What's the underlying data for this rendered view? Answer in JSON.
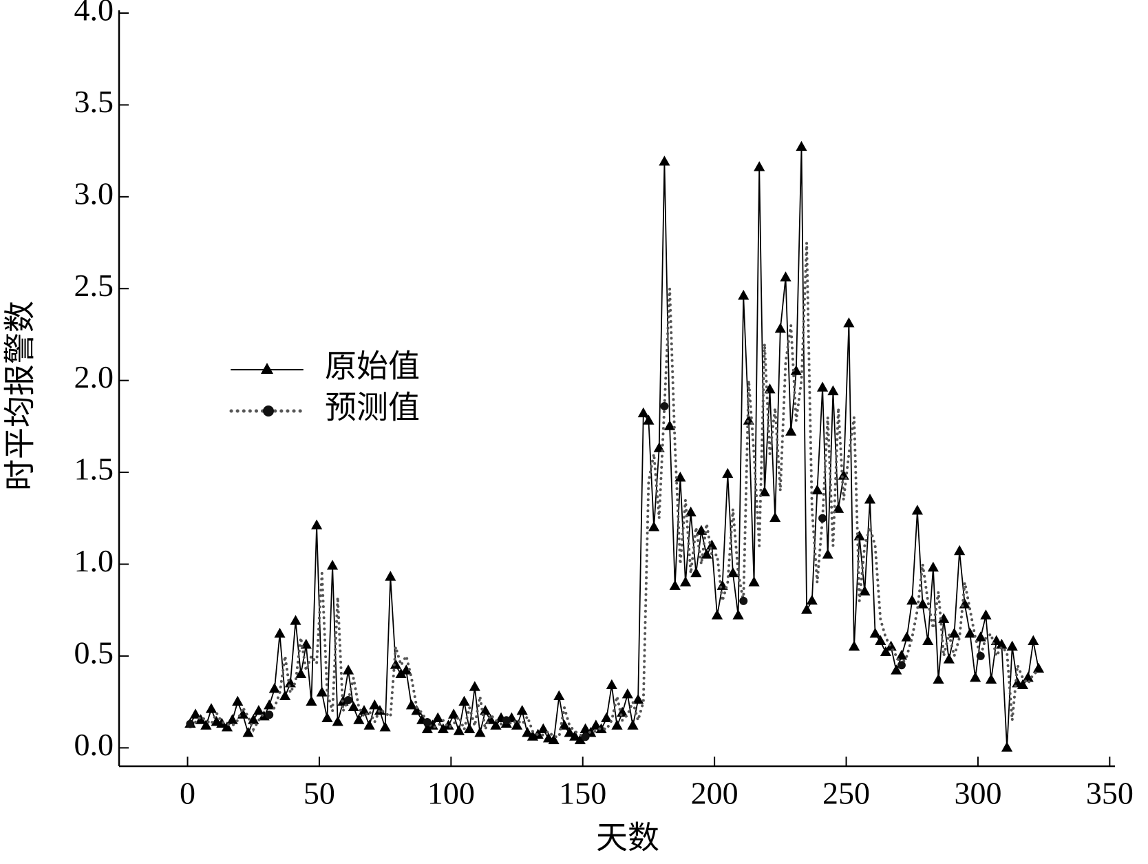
{
  "chart_data": {
    "type": "line",
    "xlabel": "天数",
    "ylabel": "时平均报警数",
    "x": [
      1,
      3,
      5,
      7,
      9,
      11,
      13,
      15,
      17,
      19,
      21,
      23,
      25,
      27,
      29,
      31,
      33,
      35,
      37,
      39,
      41,
      43,
      45,
      47,
      49,
      51,
      53,
      55,
      57,
      59,
      61,
      63,
      65,
      67,
      69,
      71,
      73,
      75,
      77,
      79,
      81,
      83,
      85,
      87,
      89,
      91,
      93,
      95,
      97,
      99,
      101,
      103,
      105,
      107,
      109,
      111,
      113,
      115,
      117,
      119,
      121,
      123,
      125,
      127,
      129,
      131,
      133,
      135,
      137,
      139,
      141,
      143,
      145,
      147,
      149,
      151,
      153,
      155,
      157,
      159,
      161,
      163,
      165,
      167,
      169,
      171,
      173,
      175,
      177,
      179,
      181,
      183,
      185,
      187,
      189,
      191,
      193,
      195,
      197,
      199,
      201,
      203,
      205,
      207,
      209,
      211,
      213,
      215,
      217,
      219,
      221,
      223,
      225,
      227,
      229,
      231,
      233,
      235,
      237,
      239,
      241,
      243,
      245,
      247,
      249,
      251,
      253,
      255,
      257,
      259,
      261,
      263,
      265,
      267,
      269,
      271,
      273,
      275,
      277,
      279,
      281,
      283,
      285,
      287,
      289,
      291,
      293,
      295,
      297,
      299,
      301,
      303,
      305,
      307,
      309,
      311,
      313,
      315,
      317,
      319,
      321,
      323
    ],
    "series": [
      {
        "name": "原始值",
        "color": "#000000",
        "style": "solid",
        "marker": "triangle",
        "values": [
          0.13,
          0.18,
          0.15,
          0.12,
          0.21,
          0.14,
          0.13,
          0.11,
          0.15,
          0.25,
          0.18,
          0.08,
          0.15,
          0.2,
          0.17,
          0.23,
          0.32,
          0.62,
          0.28,
          0.35,
          0.69,
          0.4,
          0.56,
          0.25,
          1.21,
          0.3,
          0.16,
          0.99,
          0.14,
          0.25,
          0.42,
          0.22,
          0.15,
          0.2,
          0.12,
          0.23,
          0.2,
          0.11,
          0.93,
          0.45,
          0.4,
          0.42,
          0.23,
          0.2,
          0.15,
          0.1,
          0.12,
          0.16,
          0.1,
          0.12,
          0.18,
          0.09,
          0.25,
          0.1,
          0.33,
          0.08,
          0.2,
          0.15,
          0.12,
          0.16,
          0.13,
          0.16,
          0.12,
          0.2,
          0.08,
          0.06,
          0.07,
          0.1,
          0.05,
          0.04,
          0.28,
          0.12,
          0.08,
          0.06,
          0.04,
          0.1,
          0.08,
          0.12,
          0.1,
          0.16,
          0.34,
          0.12,
          0.19,
          0.29,
          0.12,
          0.26,
          1.82,
          1.78,
          1.2,
          1.63,
          3.19,
          1.75,
          0.88,
          1.47,
          0.9,
          1.28,
          0.95,
          1.18,
          1.05,
          1.1,
          0.72,
          0.88,
          1.49,
          0.95,
          0.72,
          2.46,
          1.78,
          0.9,
          3.16,
          1.39,
          1.95,
          1.25,
          2.28,
          2.56,
          1.72,
          2.05,
          3.27,
          0.75,
          0.8,
          1.4,
          1.96,
          1.05,
          1.94,
          1.3,
          1.48,
          2.31,
          0.55,
          1.15,
          0.85,
          1.35,
          0.62,
          0.58,
          0.52,
          0.55,
          0.42,
          0.5,
          0.6,
          0.8,
          1.29,
          0.78,
          0.58,
          0.98,
          0.37,
          0.7,
          0.48,
          0.62,
          1.07,
          0.78,
          0.62,
          0.38,
          0.6,
          0.72,
          0.37,
          0.58,
          0.56,
          0.0,
          0.55,
          0.35,
          0.34,
          0.38,
          0.58,
          0.43
        ]
      },
      {
        "name": "预测值",
        "color": "#555555",
        "style": "dotted",
        "marker": "circle",
        "values": [
          0.13,
          0.14,
          0.17,
          0.15,
          0.13,
          0.19,
          0.14,
          0.13,
          0.12,
          0.15,
          0.22,
          0.17,
          0.1,
          0.15,
          0.19,
          0.18,
          0.22,
          0.3,
          0.5,
          0.3,
          0.36,
          0.6,
          0.42,
          0.5,
          0.46,
          0.95,
          0.3,
          0.2,
          0.82,
          0.2,
          0.26,
          0.38,
          0.22,
          0.17,
          0.2,
          0.14,
          0.21,
          0.19,
          0.17,
          0.55,
          0.45,
          0.5,
          0.38,
          0.22,
          0.19,
          0.14,
          0.11,
          0.12,
          0.15,
          0.11,
          0.13,
          0.17,
          0.1,
          0.22,
          0.12,
          0.28,
          0.1,
          0.18,
          0.15,
          0.13,
          0.15,
          0.13,
          0.15,
          0.13,
          0.17,
          0.09,
          0.07,
          0.07,
          0.09,
          0.06,
          0.06,
          0.22,
          0.12,
          0.09,
          0.07,
          0.06,
          0.09,
          0.09,
          0.11,
          0.1,
          0.15,
          0.28,
          0.15,
          0.18,
          0.25,
          0.15,
          0.25,
          1.45,
          1.6,
          1.25,
          1.86,
          2.5,
          1.65,
          1.0,
          1.35,
          0.95,
          1.2,
          1.0,
          1.22,
          1.05,
          1.05,
          0.8,
          0.9,
          1.3,
          0.95,
          0.8,
          2.0,
          1.6,
          1.1,
          2.2,
          1.6,
          1.85,
          1.4,
          2.1,
          2.3,
          1.78,
          2.0,
          2.75,
          1.3,
          0.9,
          1.25,
          1.8,
          1.1,
          1.85,
          1.35,
          1.6,
          1.8,
          0.8,
          1.1,
          1.2,
          1.1,
          0.7,
          0.6,
          0.55,
          0.5,
          0.45,
          0.5,
          0.6,
          0.75,
          1.0,
          0.8,
          0.65,
          0.85,
          0.5,
          0.62,
          0.5,
          0.6,
          0.9,
          0.75,
          0.6,
          0.5,
          0.6,
          0.62,
          0.5,
          0.55,
          0.52,
          0.15,
          0.45,
          0.38,
          0.35,
          0.4,
          0.42
        ]
      }
    ],
    "xlim": [
      -26,
      352
    ],
    "xticks": [
      0,
      50,
      100,
      150,
      200,
      250,
      300,
      350
    ],
    "ylim": [
      -0.1,
      4.0
    ],
    "yticks": [
      {
        "value": 0,
        "label": "0.0"
      },
      {
        "value": 0.5,
        "label": "0.5"
      },
      {
        "value": 1,
        "label": "1.0"
      },
      {
        "value": 1.5,
        "label": "1.5"
      },
      {
        "value": 2,
        "label": "2.0"
      },
      {
        "value": 2.5,
        "label": "2.5"
      },
      {
        "value": 3,
        "label": "3.0"
      },
      {
        "value": 3.5,
        "label": "3.5"
      },
      {
        "value": 4,
        "label": "4.0"
      }
    ],
    "grid": false
  }
}
